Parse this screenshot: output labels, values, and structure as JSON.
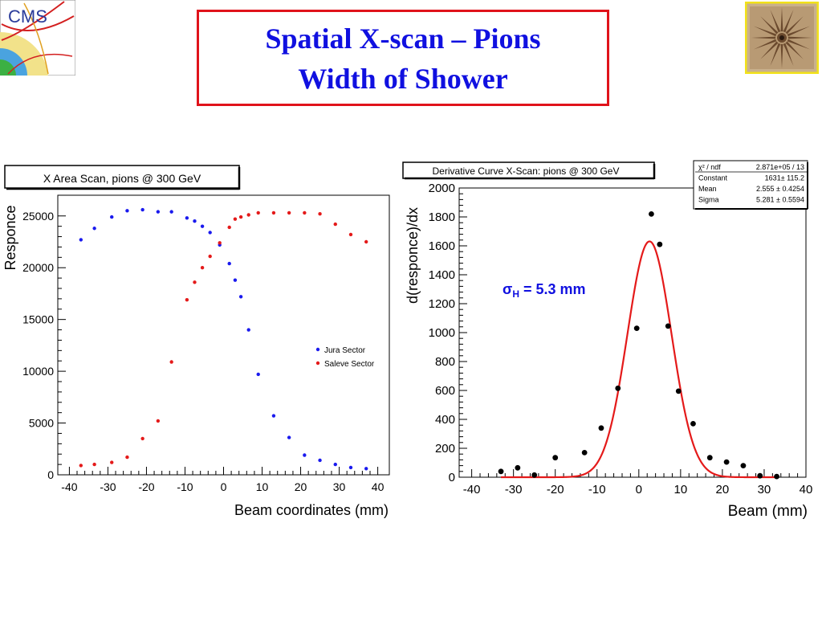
{
  "slide": {
    "title_line1": "Spatial X-scan – Pions",
    "title_line2": "Width of Shower",
    "title_color": "#1010e0",
    "border_color": "#e0131b"
  },
  "logos": {
    "left": {
      "text": "CMS",
      "icon": "cms-logo-icon"
    },
    "right": {
      "icon": "vergina-sun-icon"
    }
  },
  "chart_data": [
    {
      "type": "scatter",
      "title": "X Area Scan, pions @ 300 GeV",
      "xlabel": "Beam coordinates (mm)",
      "ylabel": "Responce",
      "xlim": [
        -43,
        43
      ],
      "ylim": [
        0,
        27000
      ],
      "xticks": [
        -40,
        -30,
        -20,
        -10,
        0,
        10,
        20,
        30,
        40
      ],
      "yticks": [
        0,
        5000,
        10000,
        15000,
        20000,
        25000
      ],
      "legend_placement": "right",
      "grid": false,
      "series": [
        {
          "name": "Jura Sector",
          "color": "#1a1aee",
          "points": [
            [
              -37,
              22700
            ],
            [
              -33.5,
              23800
            ],
            [
              -29,
              24900
            ],
            [
              -25,
              25500
            ],
            [
              -21,
              25600
            ],
            [
              -17,
              25400
            ],
            [
              -13.5,
              25400
            ],
            [
              -9.5,
              24800
            ],
            [
              -7.5,
              24500
            ],
            [
              -5.5,
              24000
            ],
            [
              -3.5,
              23400
            ],
            [
              -1,
              22200
            ],
            [
              1.5,
              20400
            ],
            [
              3,
              18800
            ],
            [
              4.5,
              17200
            ],
            [
              6.5,
              14000
            ],
            [
              9,
              9700
            ],
            [
              13,
              5700
            ],
            [
              17,
              3600
            ],
            [
              21,
              1900
            ],
            [
              25,
              1400
            ],
            [
              29,
              1000
            ],
            [
              33,
              700
            ],
            [
              37,
              600
            ]
          ]
        },
        {
          "name": "Saleve Sector",
          "color": "#e41a1a",
          "points": [
            [
              -37,
              900
            ],
            [
              -33.5,
              1000
            ],
            [
              -29,
              1200
            ],
            [
              -25,
              1700
            ],
            [
              -21,
              3500
            ],
            [
              -17,
              5200
            ],
            [
              -13.5,
              10900
            ],
            [
              -9.5,
              16900
            ],
            [
              -7.5,
              18600
            ],
            [
              -5.5,
              20000
            ],
            [
              -3.5,
              21100
            ],
            [
              -1,
              22400
            ],
            [
              1.5,
              23900
            ],
            [
              3,
              24700
            ],
            [
              4.5,
              24900
            ],
            [
              6.5,
              25100
            ],
            [
              9,
              25300
            ],
            [
              13,
              25300
            ],
            [
              17,
              25300
            ],
            [
              21,
              25300
            ],
            [
              25,
              25200
            ],
            [
              29,
              24200
            ],
            [
              33,
              23200
            ],
            [
              37,
              22500
            ]
          ]
        }
      ]
    },
    {
      "type": "scatter",
      "title": "Derivative Curve X-Scan: pions @ 300 GeV",
      "xlabel": "Beam (mm)",
      "ylabel": "d(responce)/dx",
      "xlim": [
        -43,
        40
      ],
      "ylim": [
        0,
        2000
      ],
      "xticks": [
        -40,
        -30,
        -20,
        -10,
        0,
        10,
        20,
        30,
        40
      ],
      "yticks": [
        0,
        200,
        400,
        600,
        800,
        1000,
        1200,
        1400,
        1600,
        1800,
        2000
      ],
      "grid": false,
      "annotation": {
        "sigma_symbol": "σ",
        "sigma_subscript": "H",
        "text": " = 5.3 mm",
        "color": "#1010e0"
      },
      "stats": [
        {
          "label": "χ² / ndf",
          "value": "2.871e+05 / 13"
        },
        {
          "label": "Constant",
          "value": "1631± 115.2"
        },
        {
          "label": "Mean",
          "value": "2.555 ± 0.4254"
        },
        {
          "label": "Sigma",
          "value": "5.281 ± 0.5594"
        }
      ],
      "fit": {
        "type": "gaussian",
        "constant": 1631,
        "mean": 2.555,
        "sigma": 5.281,
        "xrange": [
          -33,
          33
        ],
        "color": "#e41a1a"
      },
      "series": [
        {
          "color": "#000000",
          "points": [
            [
              -33,
              40
            ],
            [
              -29,
              65
            ],
            [
              -25,
              15
            ],
            [
              -20,
              135
            ],
            [
              -13,
              170
            ],
            [
              -9,
              340
            ],
            [
              -5,
              615
            ],
            [
              -0.5,
              1030
            ],
            [
              3,
              1820
            ],
            [
              5,
              1610
            ],
            [
              7,
              1045
            ],
            [
              9.5,
              595
            ],
            [
              13,
              370
            ],
            [
              17,
              135
            ],
            [
              21,
              105
            ],
            [
              25,
              80
            ],
            [
              29,
              10
            ],
            [
              33,
              5
            ]
          ]
        }
      ]
    }
  ]
}
